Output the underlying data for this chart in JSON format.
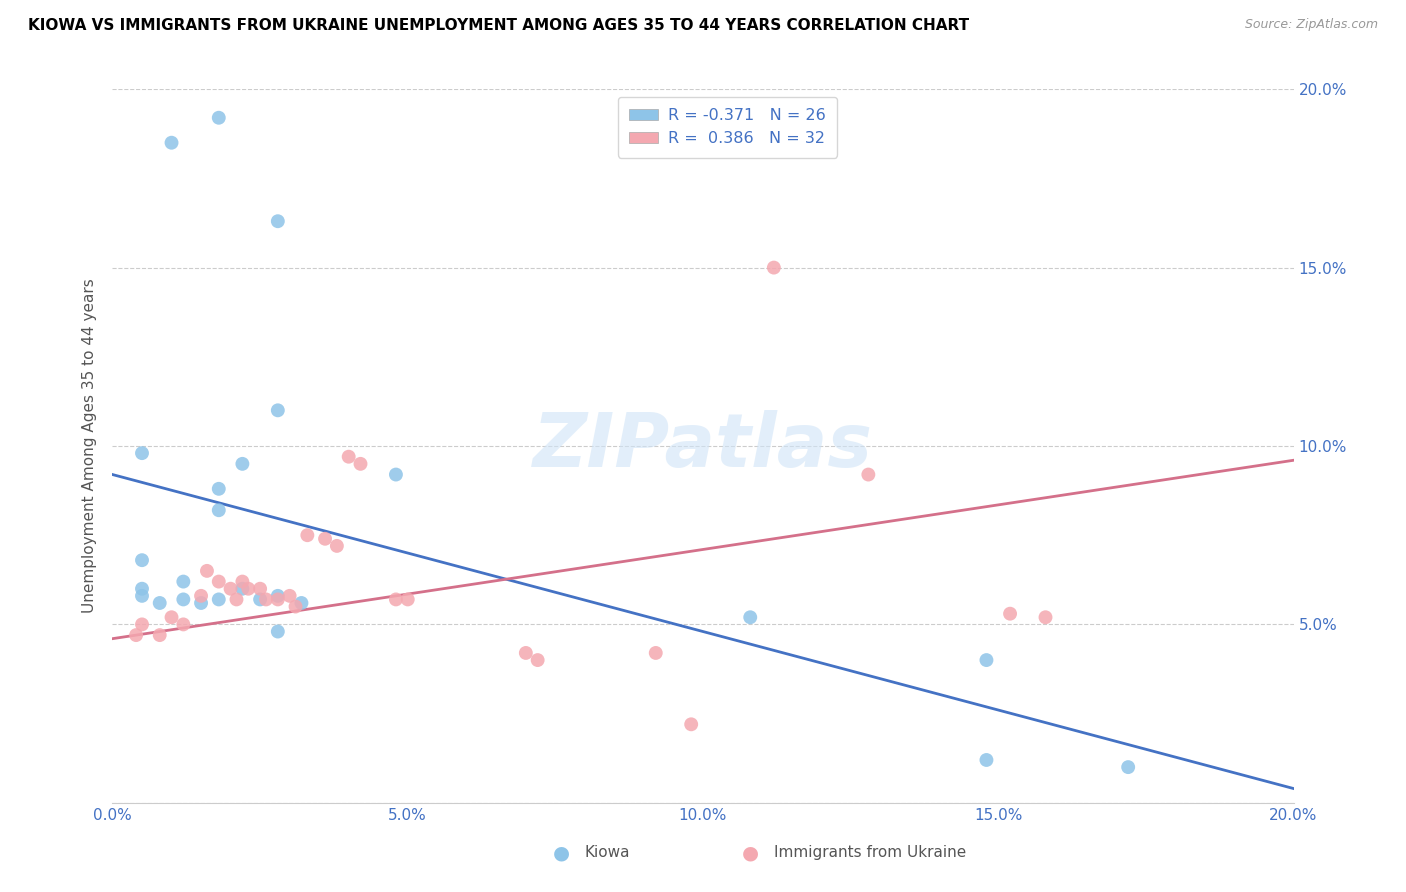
{
  "title": "KIOWA VS IMMIGRANTS FROM UKRAINE UNEMPLOYMENT AMONG AGES 35 TO 44 YEARS CORRELATION CHART",
  "source": "Source: ZipAtlas.com",
  "ylabel": "Unemployment Among Ages 35 to 44 years",
  "xlim": [
    0.0,
    0.2
  ],
  "ylim": [
    0.0,
    0.2
  ],
  "xticks": [
    0.0,
    0.05,
    0.1,
    0.15,
    0.2
  ],
  "yticks": [
    0.0,
    0.05,
    0.1,
    0.15,
    0.2
  ],
  "xticklabels": [
    "0.0%",
    "5.0%",
    "10.0%",
    "15.0%",
    "20.0%"
  ],
  "yticklabels": [
    "",
    "5.0%",
    "10.0%",
    "15.0%",
    "20.0%"
  ],
  "legend_r_kiowa": "-0.371",
  "legend_n_kiowa": "26",
  "legend_r_ukraine": "0.386",
  "legend_n_ukraine": "32",
  "watermark": "ZIPatlas",
  "kiowa_color": "#8ec4e8",
  "ukraine_color": "#f4a8b0",
  "kiowa_line_color": "#4472c4",
  "ukraine_line_color": "#d4708a",
  "kiowa_scatter": [
    [
      0.01,
      0.185
    ],
    [
      0.018,
      0.192
    ],
    [
      0.028,
      0.163
    ],
    [
      0.005,
      0.098
    ],
    [
      0.022,
      0.095
    ],
    [
      0.018,
      0.082
    ],
    [
      0.028,
      0.11
    ],
    [
      0.048,
      0.092
    ],
    [
      0.005,
      0.068
    ],
    [
      0.012,
      0.062
    ],
    [
      0.005,
      0.058
    ],
    [
      0.008,
      0.056
    ],
    [
      0.012,
      0.057
    ],
    [
      0.015,
      0.056
    ],
    [
      0.018,
      0.057
    ],
    [
      0.022,
      0.06
    ],
    [
      0.025,
      0.057
    ],
    [
      0.028,
      0.058
    ],
    [
      0.032,
      0.056
    ],
    [
      0.028,
      0.048
    ],
    [
      0.108,
      0.052
    ],
    [
      0.148,
      0.04
    ],
    [
      0.148,
      0.012
    ],
    [
      0.172,
      0.01
    ],
    [
      0.005,
      0.06
    ],
    [
      0.018,
      0.088
    ]
  ],
  "ukraine_scatter": [
    [
      0.005,
      0.05
    ],
    [
      0.008,
      0.047
    ],
    [
      0.01,
      0.052
    ],
    [
      0.012,
      0.05
    ],
    [
      0.015,
      0.058
    ],
    [
      0.016,
      0.065
    ],
    [
      0.018,
      0.062
    ],
    [
      0.02,
      0.06
    ],
    [
      0.021,
      0.057
    ],
    [
      0.022,
      0.062
    ],
    [
      0.023,
      0.06
    ],
    [
      0.025,
      0.06
    ],
    [
      0.026,
      0.057
    ],
    [
      0.028,
      0.057
    ],
    [
      0.03,
      0.058
    ],
    [
      0.031,
      0.055
    ],
    [
      0.033,
      0.075
    ],
    [
      0.036,
      0.074
    ],
    [
      0.038,
      0.072
    ],
    [
      0.04,
      0.097
    ],
    [
      0.042,
      0.095
    ],
    [
      0.048,
      0.057
    ],
    [
      0.05,
      0.057
    ],
    [
      0.07,
      0.042
    ],
    [
      0.072,
      0.04
    ],
    [
      0.092,
      0.042
    ],
    [
      0.098,
      0.022
    ],
    [
      0.112,
      0.15
    ],
    [
      0.128,
      0.092
    ],
    [
      0.152,
      0.053
    ],
    [
      0.158,
      0.052
    ],
    [
      0.004,
      0.047
    ]
  ],
  "kiowa_trendline": [
    [
      0.0,
      0.092
    ],
    [
      0.2,
      0.004
    ]
  ],
  "ukraine_trendline": [
    [
      0.0,
      0.046
    ],
    [
      0.2,
      0.096
    ]
  ]
}
